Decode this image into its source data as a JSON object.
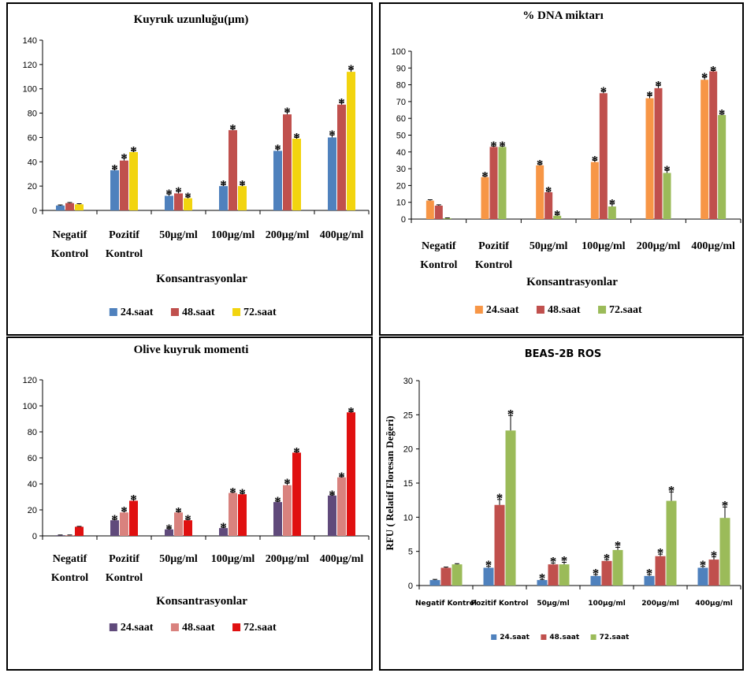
{
  "chart_data": [
    {
      "type": "bar",
      "title": "Kuyruk uzunluğu(µm)",
      "xlabel": "Konsantrasyonlar",
      "ylabel": "",
      "ylim": [
        0,
        140
      ],
      "yticks": [
        0,
        20,
        40,
        60,
        80,
        100,
        120,
        140
      ],
      "categories": [
        "Negatif\nKontrol",
        "Pozitif\nKontrol",
        "50µg/ml",
        "100µg/ml",
        "200µg/ml",
        "400µg/ml"
      ],
      "series": [
        {
          "name": "24.saat",
          "color": "#4f81bd",
          "values": [
            4,
            33,
            12,
            20,
            49,
            60
          ],
          "errors": [
            0.5,
            1,
            1.5,
            1,
            1.5,
            2
          ],
          "significant": [
            false,
            true,
            true,
            true,
            true,
            true
          ]
        },
        {
          "name": "48.saat",
          "color": "#c0504d",
          "values": [
            6,
            41,
            14,
            66,
            79,
            87
          ],
          "errors": [
            0.5,
            2,
            1.5,
            1,
            2,
            1.5
          ],
          "significant": [
            false,
            true,
            true,
            true,
            true,
            true
          ]
        },
        {
          "name": "72.saat",
          "color": "#f2d40f",
          "values": [
            5,
            48,
            10,
            20,
            59,
            114
          ],
          "errors": [
            0.5,
            1,
            1,
            1,
            1,
            2
          ],
          "significant": [
            false,
            true,
            true,
            true,
            true,
            true
          ]
        }
      ],
      "legend": "bottom",
      "grid": false
    },
    {
      "type": "bar",
      "title": "% DNA miktarı",
      "xlabel": "Konsantrasyonlar",
      "ylabel": "",
      "ylim": [
        0,
        100
      ],
      "yticks": [
        0,
        10,
        20,
        30,
        40,
        50,
        60,
        70,
        80,
        90,
        100
      ],
      "categories": [
        "Negatif\nKontrol",
        "Pozitif\nKontrol",
        "50µg/ml",
        "100µg/ml",
        "200µg/ml",
        "400µg/ml"
      ],
      "series": [
        {
          "name": "24.saat",
          "color": "#f79646",
          "values": [
            11,
            25,
            32,
            34,
            72,
            83
          ],
          "errors": [
            0.5,
            0.5,
            0.5,
            1,
            1.5,
            1.5
          ],
          "significant": [
            false,
            true,
            true,
            true,
            true,
            true
          ]
        },
        {
          "name": "48.saat",
          "color": "#c0504d",
          "values": [
            8,
            43,
            16,
            75,
            78,
            88
          ],
          "errors": [
            0.5,
            0.5,
            0.5,
            1,
            1.5,
            0.5
          ],
          "significant": [
            false,
            true,
            true,
            true,
            true,
            true
          ]
        },
        {
          "name": "72.saat",
          "color": "#9bbb59",
          "values": [
            0.5,
            43,
            2,
            7.5,
            27.5,
            62
          ],
          "errors": [
            0.2,
            0.5,
            0.5,
            1.5,
            1.5,
            0.5
          ],
          "significant": [
            false,
            true,
            true,
            true,
            true,
            true
          ]
        }
      ],
      "legend": "bottom",
      "grid": false
    },
    {
      "type": "bar",
      "title": "Olive kuyruk momenti",
      "xlabel": "Konsantrasyonlar",
      "ylabel": "",
      "ylim": [
        0,
        120
      ],
      "yticks": [
        0,
        20,
        40,
        60,
        80,
        100,
        120
      ],
      "categories": [
        "Negatif\nKontrol",
        "Pozitif\nKontrol",
        "50µg/ml",
        "100µg/ml",
        "200µg/ml",
        "400µg/ml"
      ],
      "series": [
        {
          "name": "24.saat",
          "color": "#604a7b",
          "values": [
            0.5,
            12,
            5,
            6,
            26,
            31
          ],
          "errors": [
            0.2,
            0.5,
            0.5,
            0.5,
            0.5,
            0.5
          ],
          "significant": [
            false,
            true,
            true,
            true,
            true,
            true
          ]
        },
        {
          "name": "48.saat",
          "color": "#d9827e",
          "values": [
            0.5,
            18,
            18,
            33,
            39,
            45
          ],
          "errors": [
            0.2,
            1,
            0.5,
            0.5,
            1.5,
            0.5
          ],
          "significant": [
            false,
            true,
            true,
            true,
            true,
            true
          ]
        },
        {
          "name": "72.saat",
          "color": "#e01010",
          "values": [
            7,
            27,
            12,
            32,
            64,
            95
          ],
          "errors": [
            0.3,
            1,
            0.5,
            0.5,
            0.5,
            0.5
          ],
          "significant": [
            false,
            true,
            true,
            true,
            true,
            true
          ]
        }
      ],
      "legend": "bottom",
      "grid": false
    },
    {
      "type": "bar",
      "title": "BEAS-2B ROS",
      "xlabel": "",
      "ylabel": "RFU ( Relatif Floresan Değeri)",
      "ylim": [
        0,
        30
      ],
      "yticks": [
        0,
        5,
        10,
        15,
        20,
        25,
        30
      ],
      "categories": [
        "Negatif Kontrol",
        "Pozitif Kontrol",
        "50µg/ml",
        "100µg/ml",
        "200µg/ml",
        "400µg/ml"
      ],
      "series": [
        {
          "name": "24.saat",
          "color": "#4f81bd",
          "values": [
            0.8,
            2.6,
            0.8,
            1.4,
            1.4,
            2.6
          ],
          "errors": [
            0.1,
            0.2,
            0.1,
            0.2,
            0.2,
            0.2
          ],
          "significant": [
            false,
            true,
            true,
            true,
            true,
            true
          ]
        },
        {
          "name": "48.saat",
          "color": "#c0504d",
          "values": [
            2.6,
            11.8,
            3.1,
            3.6,
            4.3,
            3.8
          ],
          "errors": [
            0.1,
            0.8,
            0.2,
            0.2,
            0.3,
            0.4
          ],
          "significant": [
            false,
            true,
            true,
            true,
            true,
            true
          ]
        },
        {
          "name": "72.saat",
          "color": "#9bbb59",
          "values": [
            3.1,
            22.7,
            3.1,
            5.2,
            12.4,
            9.9
          ],
          "errors": [
            0.1,
            2.2,
            0.3,
            0.4,
            1.3,
            1.6
          ],
          "significant": [
            false,
            true,
            true,
            true,
            true,
            true
          ]
        }
      ],
      "legend": "bottom",
      "grid": false
    }
  ]
}
